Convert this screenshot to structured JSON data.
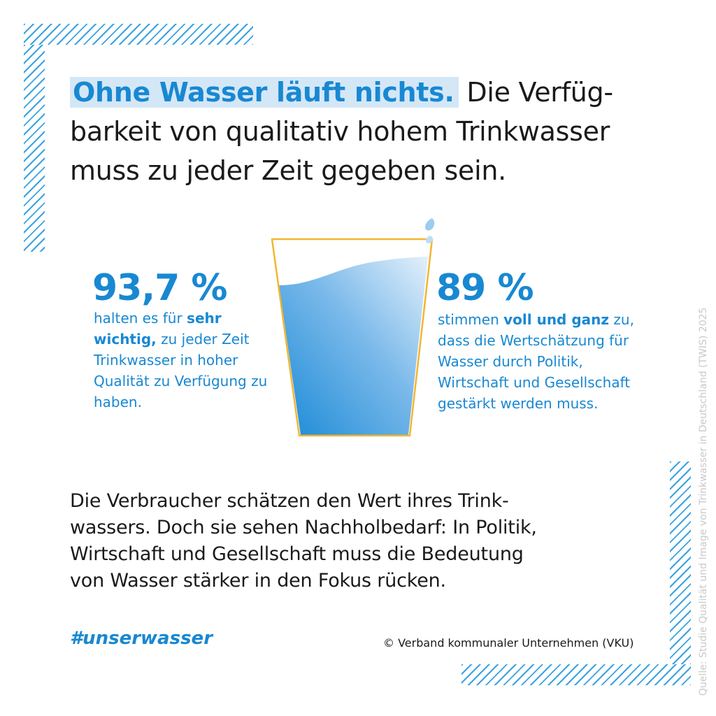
{
  "headline": {
    "highlight": "Ohne Wasser läuft nichts.",
    "line1_rest": "Die Verfüg-",
    "line2": "barkeit von qualitativ hohem Trinkwasser",
    "line3": "muss zu jeder Zeit gegeben sein."
  },
  "stat_left": {
    "value": "93,7 %",
    "text_before": "halten es für ",
    "text_bold": "sehr wichtig,",
    "text_after": " zu jeder Zeit Trinkwasser in hoher Qualität zu Verfügung zu haben."
  },
  "stat_right": {
    "value": "89 %",
    "text_before": "stimmen ",
    "text_bold": "voll und ganz",
    "text_after": " zu, dass die Wertschätzung für Wasser durch Politik, Wirtschaft und Gesellschaft gestärkt werden muss."
  },
  "body": {
    "line1": "Die Verbraucher schätzen den Wert ihres Trink-",
    "line2": "wassers. Doch sie sehen Nachholbedarf: In Politik,",
    "line3": "Wirtschaft und Gesellschaft muss die Bedeutung",
    "line4": "von Wasser stärker in den Fokus rücken."
  },
  "hashtag": "#unserwasser",
  "copyright": "© Verband kommunaler Unternehmen (VKU)",
  "source": "Quelle: Studie Qualität und Image von Trinkwasser in Deutschland (TWIS) 2025",
  "colors": {
    "accent_blue": "#1888d2",
    "highlight_bg": "#d4e7f7",
    "hatch": "#3aa3e0",
    "glass_outline": "#f2b630",
    "water_light": "#d7e9fa",
    "water_dark": "#1a8ad6"
  },
  "icons": [
    "drinking-glass-icon",
    "water-drops-icon"
  ]
}
